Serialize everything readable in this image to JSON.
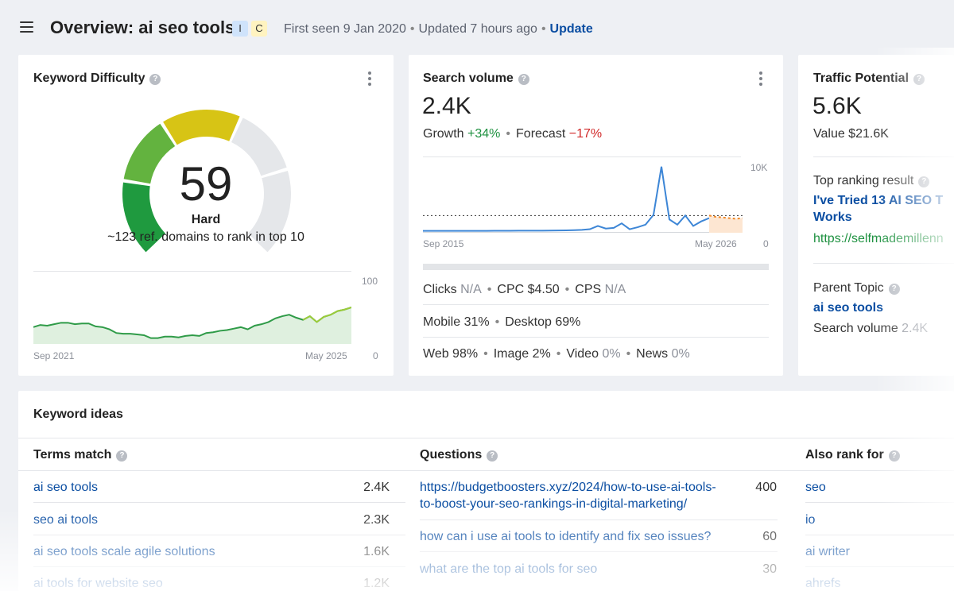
{
  "header": {
    "title": "Overview: ai seo tools",
    "badge_i": "I",
    "badge_c": "C",
    "first_seen": "First seen 9 Jan 2020",
    "updated": "Updated 7 hours ago",
    "update_label": "Update"
  },
  "kd": {
    "title": "Keyword Difficulty",
    "score": "59",
    "score_value": 59,
    "level": "Hard",
    "subtitle": "~123 ref. domains to rank in top 10",
    "chart_ymax": "100",
    "chart_ymin": "0",
    "chart_start": "Sep 2021",
    "chart_end": "May 2025"
  },
  "sv": {
    "title": "Search volume",
    "value": "2.4K",
    "growth_label": "Growth",
    "growth_value": "+34%",
    "forecast_label": "Forecast",
    "forecast_value": "−17%",
    "chart_ymax": "10K",
    "chart_ymin": "0",
    "chart_start": "Sep 2015",
    "chart_end": "May 2026",
    "clicks_label": "Clicks",
    "clicks_value": "N/A",
    "cpc": "CPC $4.50",
    "cps_label": "CPS",
    "cps_value": "N/A",
    "mobile": "Mobile 31%",
    "desktop": "Desktop 69%",
    "web": "Web 98%",
    "image": "Image 2%",
    "video_label": "Video",
    "video_value": "0%",
    "news_label": "News",
    "news_value": "0%"
  },
  "tp": {
    "title": "Traffic Potential",
    "value": "5.6K",
    "value_label": "Value $21.6K",
    "top_ranking_label": "Top ranking result",
    "top_result_title_1": "I've Tried 13 AI SEO T",
    "top_result_title_2": "Works",
    "top_result_url": "https://selfmademillenn",
    "parent_topic_label": "Parent Topic",
    "parent_topic": "ai seo tools",
    "parent_volume_label": "Search volume",
    "parent_volume_value": "2.4K"
  },
  "ideas": {
    "title": "Keyword ideas",
    "terms_header": "Terms match",
    "questions_header": "Questions",
    "also_header": "Also rank for",
    "terms": [
      {
        "kw": "ai seo tools",
        "vol": "2.4K"
      },
      {
        "kw": "seo ai tools",
        "vol": "2.3K"
      },
      {
        "kw": "ai seo tools scale agile solutions",
        "vol": "1.6K"
      },
      {
        "kw": "ai tools for website seo",
        "vol": "1.2K"
      }
    ],
    "questions": [
      {
        "q1": "https://budgetboosters.xyz/2024/how-to-use-ai-tools-",
        "q2": "to-boost-your-seo-rankings-in-digital-marketing/",
        "vol": "400"
      },
      {
        "q1": "how can i use ai tools to identify and fix seo issues?",
        "vol": "60"
      },
      {
        "q1": "what are the top ai tools for seo",
        "vol": "30"
      }
    ],
    "also": [
      "seo",
      "io",
      "ai writer",
      "ahrefs"
    ]
  },
  "chart_data": [
    {
      "type": "area",
      "title": "Keyword Difficulty",
      "x_start": "Sep 2021",
      "x_end": "May 2025",
      "ylim": [
        0,
        100
      ],
      "values": [
        23,
        26,
        25,
        27,
        29,
        29,
        27,
        28,
        28,
        24,
        23,
        20,
        15,
        14,
        14,
        13,
        12,
        8,
        8,
        10,
        10,
        9,
        11,
        12,
        11,
        15,
        16,
        18,
        19,
        21,
        23,
        20,
        25,
        27,
        30,
        35,
        38,
        40,
        36,
        33,
        38,
        30,
        37,
        40,
        45,
        47,
        50
      ]
    },
    {
      "type": "line",
      "title": "Search volume",
      "x_start": "Sep 2015",
      "x_end": "May 2026",
      "ylim": [
        0,
        10000
      ],
      "values": [
        50,
        50,
        50,
        50,
        50,
        50,
        50,
        50,
        50,
        60,
        60,
        60,
        70,
        70,
        80,
        80,
        90,
        100,
        120,
        150,
        200,
        300,
        800,
        400,
        500,
        1200,
        300,
        600,
        1000,
        2500,
        9900,
        1800,
        1000,
        2400,
        800,
        1500,
        2000
      ],
      "forecast": [
        2400,
        2200,
        2100,
        2000,
        1900,
        2000
      ]
    }
  ]
}
